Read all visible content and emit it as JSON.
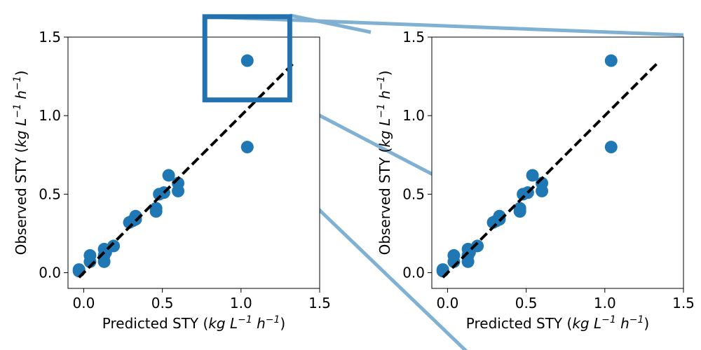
{
  "chart_data": [
    {
      "type": "scatter",
      "panel": "left",
      "xlabel": {
        "text": "Predicted STY (",
        "unit": "kg L",
        "exp1": "−1",
        "mid": " h",
        "exp2": "−1",
        "close": ")"
      },
      "ylabel": {
        "text": "Observed STY (",
        "unit": "kg L",
        "exp1": "−1",
        "mid": " h",
        "exp2": "−1",
        "close": ")"
      },
      "xlim": [
        -0.1,
        1.5
      ],
      "ylim": [
        -0.1,
        1.5
      ],
      "xticks": [
        0.0,
        0.5,
        1.0,
        1.5
      ],
      "xtick_labels": [
        "0.0",
        "0.5",
        "1.0",
        "1.5"
      ],
      "yticks": [
        0.0,
        0.5,
        1.0,
        1.5
      ],
      "ytick_labels": [
        "0.0",
        "0.5",
        "1.0",
        "1.5"
      ],
      "grid": false,
      "points_color": "#1f77b4",
      "points": [
        {
          "x": -0.03,
          "y": 0.01
        },
        {
          "x": -0.03,
          "y": 0.02
        },
        {
          "x": 0.04,
          "y": 0.07
        },
        {
          "x": 0.04,
          "y": 0.11
        },
        {
          "x": 0.13,
          "y": 0.07
        },
        {
          "x": 0.13,
          "y": 0.11
        },
        {
          "x": 0.13,
          "y": 0.15
        },
        {
          "x": 0.14,
          "y": 0.13
        },
        {
          "x": 0.19,
          "y": 0.17
        },
        {
          "x": 0.29,
          "y": 0.32
        },
        {
          "x": 0.31,
          "y": 0.33
        },
        {
          "x": 0.33,
          "y": 0.34
        },
        {
          "x": 0.33,
          "y": 0.36
        },
        {
          "x": 0.46,
          "y": 0.39
        },
        {
          "x": 0.46,
          "y": 0.41
        },
        {
          "x": 0.48,
          "y": 0.5
        },
        {
          "x": 0.51,
          "y": 0.51
        },
        {
          "x": 0.54,
          "y": 0.62
        },
        {
          "x": 0.6,
          "y": 0.52
        },
        {
          "x": 0.6,
          "y": 0.57
        },
        {
          "x": 1.04,
          "y": 0.8
        },
        {
          "x": 1.04,
          "y": 1.35
        }
      ],
      "reference_line": {
        "style": "dashed",
        "color": "#000000",
        "from": [
          -0.03,
          -0.03
        ],
        "to": [
          1.34,
          1.34
        ]
      },
      "zoom_box": {
        "x": [
          0.77,
          1.31
        ],
        "y": [
          1.1,
          1.63
        ],
        "color": "#2272b0"
      }
    },
    {
      "type": "scatter",
      "panel": "right",
      "xlabel": {
        "text": "Predicted STY (",
        "unit": "kg L",
        "exp1": "−1",
        "mid": " h",
        "exp2": "−1",
        "close": ")"
      },
      "ylabel": {
        "text": "Observed STY (",
        "unit": "kg L",
        "exp1": "−1",
        "mid": " h",
        "exp2": "−1",
        "close": ")"
      },
      "xlim": [
        -0.1,
        1.5
      ],
      "ylim": [
        -0.1,
        1.5
      ],
      "xticks": [
        0.0,
        0.5,
        1.0,
        1.5
      ],
      "xtick_labels": [
        "0.0",
        "0.5",
        "1.0",
        "1.5"
      ],
      "yticks": [
        0.0,
        0.5,
        1.0,
        1.5
      ],
      "ytick_labels": [
        "0.0",
        "0.5",
        "1.0",
        "1.5"
      ],
      "grid": false,
      "points_color": "#1f77b4",
      "points": [
        {
          "x": -0.03,
          "y": 0.01
        },
        {
          "x": -0.03,
          "y": 0.02
        },
        {
          "x": 0.04,
          "y": 0.07
        },
        {
          "x": 0.04,
          "y": 0.11
        },
        {
          "x": 0.13,
          "y": 0.07
        },
        {
          "x": 0.13,
          "y": 0.11
        },
        {
          "x": 0.13,
          "y": 0.15
        },
        {
          "x": 0.14,
          "y": 0.13
        },
        {
          "x": 0.19,
          "y": 0.17
        },
        {
          "x": 0.29,
          "y": 0.32
        },
        {
          "x": 0.31,
          "y": 0.33
        },
        {
          "x": 0.33,
          "y": 0.34
        },
        {
          "x": 0.33,
          "y": 0.36
        },
        {
          "x": 0.46,
          "y": 0.39
        },
        {
          "x": 0.46,
          "y": 0.41
        },
        {
          "x": 0.48,
          "y": 0.5
        },
        {
          "x": 0.51,
          "y": 0.51
        },
        {
          "x": 0.54,
          "y": 0.62
        },
        {
          "x": 0.6,
          "y": 0.52
        },
        {
          "x": 0.6,
          "y": 0.57
        },
        {
          "x": 1.04,
          "y": 0.8
        },
        {
          "x": 1.04,
          "y": 1.35
        }
      ],
      "reference_line": {
        "style": "dashed",
        "color": "#000000",
        "from": [
          -0.03,
          -0.03
        ],
        "to": [
          1.34,
          1.34
        ]
      }
    }
  ],
  "connector_color": "#80b1d3"
}
